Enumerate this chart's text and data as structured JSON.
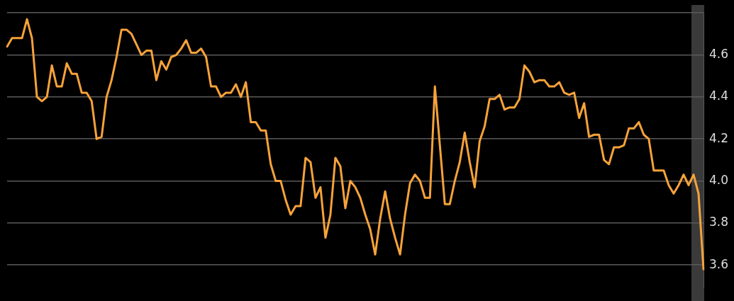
{
  "chart_data": {
    "type": "line",
    "categories": [
      null,
      null,
      null,
      null,
      null,
      null,
      null,
      null,
      null,
      null,
      null,
      null,
      null,
      null,
      null,
      null,
      null,
      null,
      null,
      null,
      null,
      null,
      null,
      null,
      null,
      null,
      null,
      null,
      null,
      null,
      null,
      null,
      null,
      null,
      null,
      null,
      null,
      null,
      null,
      null,
      null,
      null,
      null,
      null,
      null,
      null,
      null,
      null,
      null,
      null,
      null,
      null,
      null,
      null,
      null,
      null,
      null,
      null,
      null,
      null,
      null,
      null,
      null,
      null,
      null,
      null,
      null,
      null,
      null,
      null,
      null,
      null,
      null,
      null,
      null,
      null,
      null,
      null,
      null,
      null,
      null,
      null,
      null,
      null,
      null,
      null,
      null,
      null,
      null,
      null,
      null,
      null,
      null,
      null,
      null,
      null,
      null,
      null,
      null,
      null,
      null,
      null,
      null,
      null,
      null,
      null,
      null,
      null,
      null,
      null,
      null,
      null,
      null,
      null,
      null,
      null,
      null,
      null,
      null,
      null,
      null,
      null,
      null,
      null,
      null,
      null,
      null,
      null,
      null,
      null,
      null,
      null,
      null,
      null,
      null,
      null,
      null,
      null,
      null,
      null,
      null
    ],
    "series": [
      {
        "color": "#f7a23a",
        "values": [
          4.64,
          4.68,
          4.68,
          4.68,
          4.77,
          4.68,
          4.4,
          4.38,
          4.4,
          4.55,
          4.45,
          4.45,
          4.56,
          4.51,
          4.51,
          4.42,
          4.42,
          4.38,
          4.2,
          4.21,
          4.4,
          4.48,
          4.59,
          4.72,
          4.72,
          4.7,
          4.65,
          4.6,
          4.62,
          4.62,
          4.48,
          4.57,
          4.53,
          4.59,
          4.6,
          4.63,
          4.67,
          4.61,
          4.61,
          4.63,
          4.59,
          4.45,
          4.45,
          4.4,
          4.42,
          4.42,
          4.46,
          4.4,
          4.47,
          4.28,
          4.28,
          4.24,
          4.24,
          4.08,
          4.0,
          4.0,
          3.91,
          3.84,
          3.88,
          3.88,
          4.11,
          4.09,
          3.92,
          3.97,
          3.73,
          3.84,
          4.11,
          4.07,
          3.87,
          4.0,
          3.97,
          3.92,
          3.84,
          3.77,
          3.65,
          3.82,
          3.95,
          3.82,
          3.73,
          3.65,
          3.84,
          3.99,
          4.03,
          4.0,
          3.92,
          3.92,
          4.45,
          4.17,
          3.89,
          3.89,
          4.0,
          4.09,
          4.23,
          4.09,
          3.97,
          4.19,
          4.26,
          4.39,
          4.39,
          4.41,
          4.34,
          4.35,
          4.35,
          4.39,
          4.55,
          4.52,
          4.47,
          4.48,
          4.48,
          4.45,
          4.45,
          4.47,
          4.42,
          4.41,
          4.42,
          4.3,
          4.37,
          4.21,
          4.22,
          4.22,
          4.1,
          4.08,
          4.16,
          4.16,
          4.17,
          4.25,
          4.25,
          4.28,
          4.22,
          4.2,
          4.05,
          4.05,
          4.05,
          3.98,
          3.94,
          3.98,
          4.03,
          3.98,
          4.03,
          3.94,
          3.58
        ]
      }
    ],
    "ylim": [
      3.49,
      4.8
    ],
    "yticks": [
      3.6,
      3.8,
      {
        "value": 4,
        "label": "4.0"
      },
      4.2,
      4.4,
      4.6,
      {
        "value": 4.8,
        "label": null
      }
    ],
    "grid": "y",
    "legend": false,
    "tick_labels": "y",
    "marker": "none",
    "line_style": "solid"
  }
}
